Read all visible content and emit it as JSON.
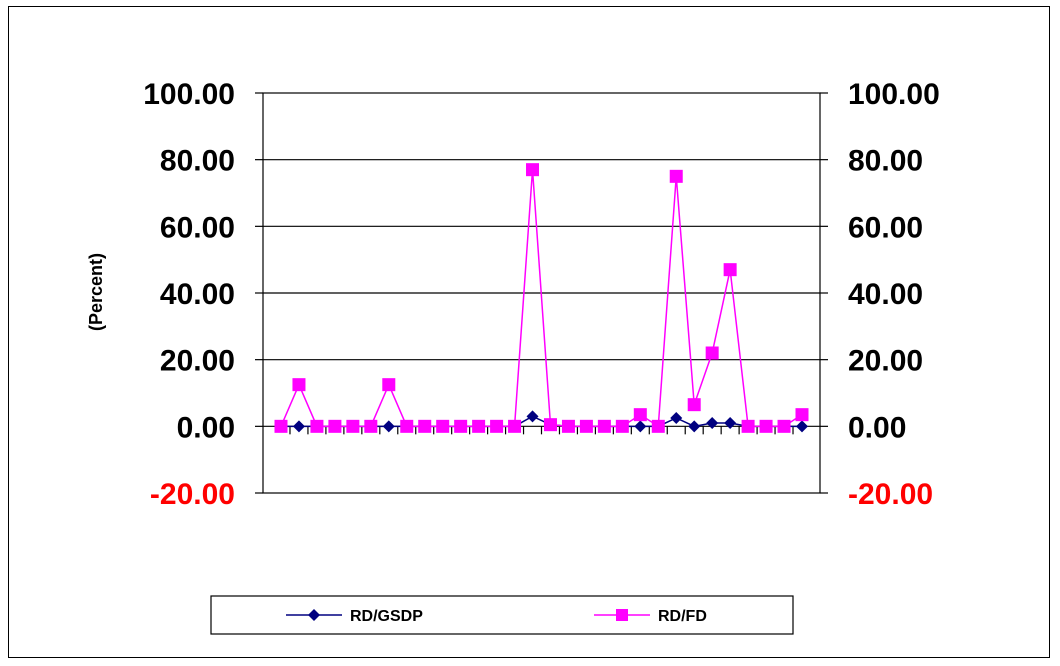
{
  "chart_data": {
    "type": "line",
    "title": "",
    "xlabel": "",
    "ylabel": "(Percent)",
    "ylim": [
      -20,
      100
    ],
    "yticks": [
      100,
      80,
      60,
      40,
      20,
      0,
      -20
    ],
    "ytick_labels": [
      "100.00",
      "80.00",
      "60.00",
      "40.00",
      "20.00",
      "0.00",
      "-20.00"
    ],
    "negative_tick_color": "#ff0000",
    "grid": true,
    "legend_position": "bottom",
    "x": [
      1,
      2,
      3,
      4,
      5,
      6,
      7,
      8,
      9,
      10,
      11,
      12,
      13,
      14,
      15,
      16,
      17,
      18,
      19,
      20,
      21,
      22,
      23,
      24,
      25,
      26,
      27,
      28,
      29,
      30
    ],
    "series": [
      {
        "name": "RD/GSDP",
        "color": "#000080",
        "marker": "diamond",
        "values": [
          0,
          0,
          0,
          0,
          0,
          0,
          0,
          0,
          0,
          0,
          0,
          0,
          0,
          0,
          3,
          0.5,
          0,
          0,
          0,
          0,
          0,
          0,
          2.5,
          0,
          1,
          1,
          0,
          0,
          0,
          0
        ]
      },
      {
        "name": "RD/FD",
        "color": "#ff00ff",
        "marker": "square",
        "values": [
          0,
          12.5,
          0,
          0,
          0,
          0,
          12.5,
          0,
          0,
          0,
          0,
          0,
          0,
          0,
          77,
          0.5,
          0,
          0,
          0,
          0,
          3.5,
          0,
          75,
          6.5,
          22,
          47,
          0,
          0,
          0,
          3.5
        ]
      }
    ]
  }
}
